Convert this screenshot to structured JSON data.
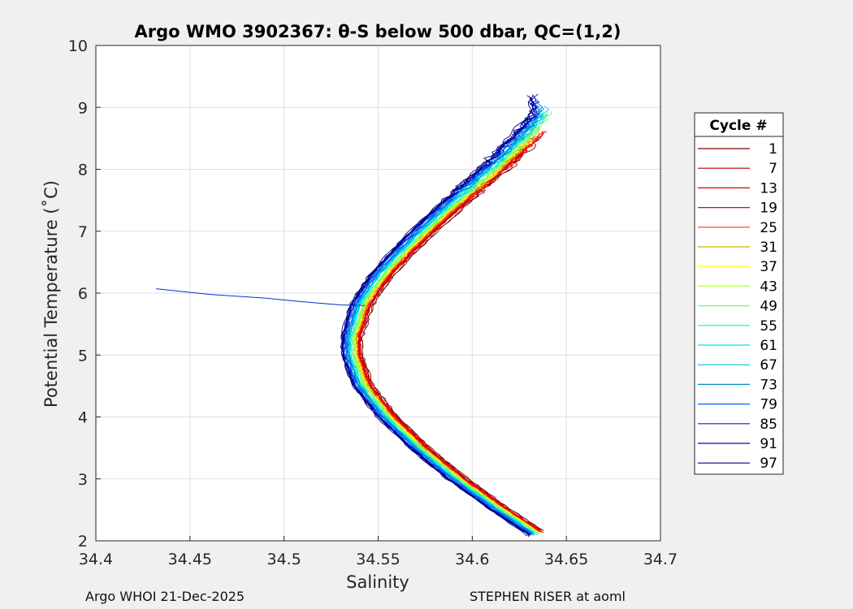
{
  "chart_data": {
    "type": "line",
    "title": "Argo WMO 3902367: θ-S below 500 dbar,  QC=(1,2)",
    "xlabel": "Salinity",
    "ylabel": "Potential Temperature (˚C)",
    "xlim": [
      34.4,
      34.7
    ],
    "ylim": [
      2,
      10
    ],
    "x_ticks": [
      "34.4",
      "34.45",
      "34.5",
      "34.55",
      "34.6",
      "34.65",
      "34.7"
    ],
    "y_ticks": [
      "2",
      "3",
      "4",
      "5",
      "6",
      "7",
      "8",
      "9",
      "10"
    ],
    "grid": true,
    "legend": {
      "title": "Cycle #",
      "placement": "right",
      "entries": [
        {
          "label": "1",
          "color": "#800000"
        },
        {
          "label": "7",
          "color": "#b30000"
        },
        {
          "label": "13",
          "color": "#d80000"
        },
        {
          "label": "19",
          "color": "#f00000"
        },
        {
          "label": "25",
          "color": "#ff3a00"
        },
        {
          "label": "31",
          "color": "#c8b400"
        },
        {
          "label": "37",
          "color": "#ffff00"
        },
        {
          "label": "43",
          "color": "#b8ff40"
        },
        {
          "label": "49",
          "color": "#60ff80"
        },
        {
          "label": "55",
          "color": "#00ffb0"
        },
        {
          "label": "61",
          "color": "#00e0ff"
        },
        {
          "label": "67",
          "color": "#00c0e0"
        },
        {
          "label": "73",
          "color": "#0090c0"
        },
        {
          "label": "79",
          "color": "#0060ff"
        },
        {
          "label": "85",
          "color": "#0020e0"
        },
        {
          "label": "91",
          "color": "#0000b0"
        },
        {
          "label": "97",
          "color": "#000080"
        }
      ]
    },
    "series_profile": {
      "T": [
        2.1,
        2.5,
        3.0,
        3.5,
        4.0,
        4.5,
        5.0,
        5.3,
        5.5,
        5.8,
        6.0,
        6.3,
        6.6,
        7.0,
        7.5,
        8.0,
        8.5,
        8.9
      ],
      "S": [
        34.635,
        34.615,
        34.592,
        34.572,
        34.555,
        34.542,
        34.536,
        34.536,
        34.538,
        34.541,
        34.545,
        34.552,
        34.561,
        34.574,
        34.592,
        34.611,
        34.628,
        34.64
      ]
    },
    "outlier_profile": {
      "S": [
        34.432,
        34.46,
        34.49,
        34.51,
        34.53,
        34.543
      ],
      "T": [
        6.07,
        5.98,
        5.92,
        5.86,
        5.81,
        5.8
      ]
    }
  },
  "footer": {
    "left": "Argo WHOI 21-Dec-2025",
    "right": "STEPHEN RISER at aoml"
  }
}
